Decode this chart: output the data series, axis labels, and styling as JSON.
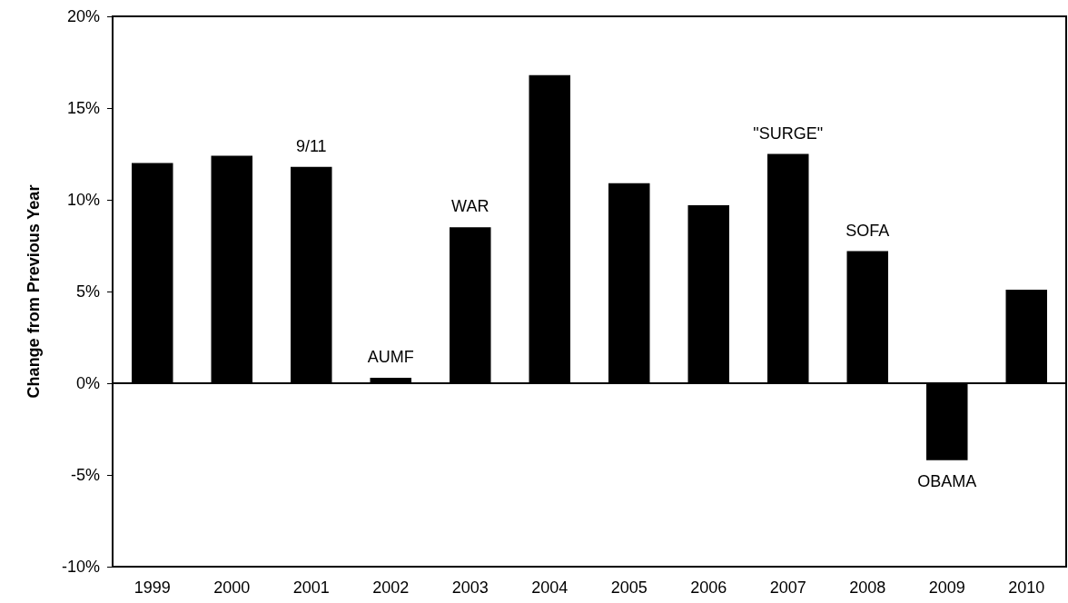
{
  "chart_data": {
    "type": "bar",
    "ylabel": "Change from Previous Year",
    "categories": [
      "1999",
      "2000",
      "2001",
      "2002",
      "2003",
      "2004",
      "2005",
      "2006",
      "2007",
      "2008",
      "2009",
      "2010"
    ],
    "values": [
      12.0,
      12.4,
      11.8,
      0.3,
      8.5,
      16.8,
      10.9,
      9.7,
      12.5,
      7.2,
      -4.2,
      5.1
    ],
    "color": "#000000",
    "ylim": [
      -10,
      20
    ],
    "yticks": [
      {
        "value": -10,
        "label": "-10%"
      },
      {
        "value": -5,
        "label": "-5%"
      },
      {
        "value": 0,
        "label": "0%"
      },
      {
        "value": 5,
        "label": "5%"
      },
      {
        "value": 10,
        "label": "10%"
      },
      {
        "value": 15,
        "label": "15%"
      },
      {
        "value": 20,
        "label": "20%"
      }
    ],
    "annotations": [
      {
        "text": "9/11",
        "x": "2001",
        "y": 11.8
      },
      {
        "text": "AUMF",
        "x": "2002",
        "y": 0.3
      },
      {
        "text": "WAR",
        "x": "2003",
        "y": 8.5
      },
      {
        "text": "\"SURGE\"",
        "x": "2007",
        "y": 12.5
      },
      {
        "text": "SOFA",
        "x": "2008",
        "y": 7.2
      },
      {
        "text": "OBAMA",
        "x": "2009",
        "y": -4.2
      }
    ]
  }
}
